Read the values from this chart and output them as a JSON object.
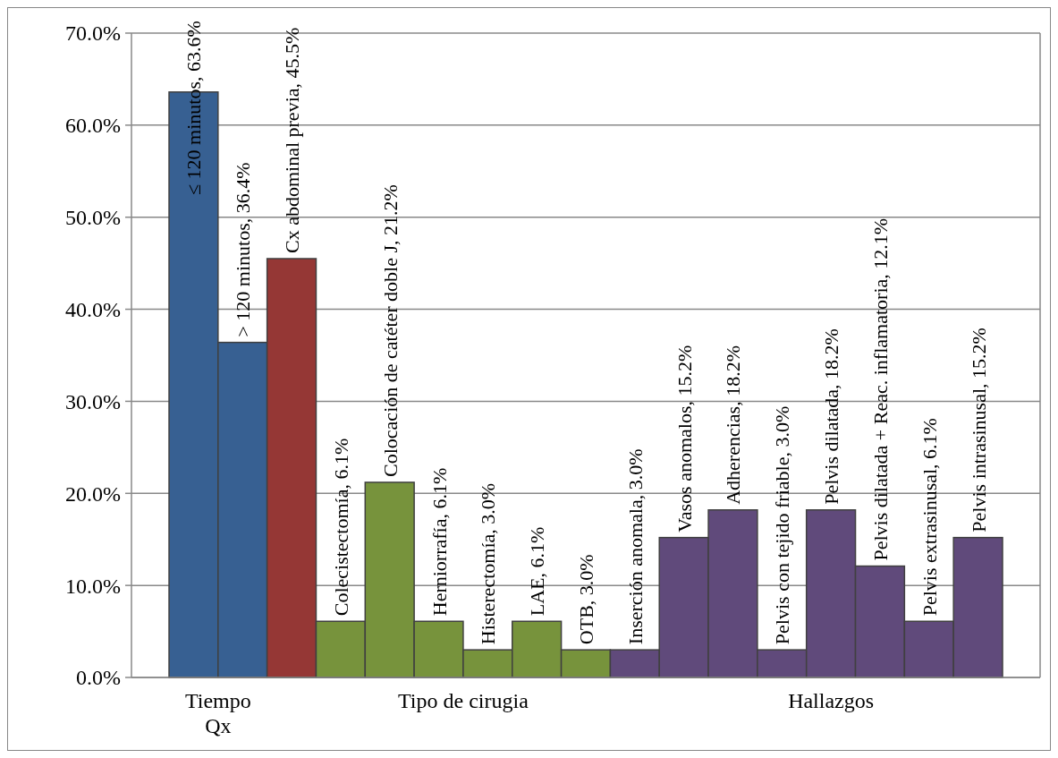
{
  "chart_data": {
    "type": "bar",
    "categories": [
      null,
      null,
      null,
      null,
      null,
      null,
      null,
      null,
      null,
      null,
      null,
      null,
      null,
      null,
      null,
      null,
      null
    ],
    "values": [
      63.6,
      36.4,
      45.5,
      6.1,
      21.2,
      6.1,
      3.0,
      6.1,
      3.0,
      3.0,
      15.2,
      18.2,
      3.0,
      18.2,
      12.1,
      6.1,
      15.2
    ],
    "colors": [
      "#376092",
      "#376092",
      "#953735",
      "#77933c",
      "#77933c",
      "#77933c",
      "#77933c",
      "#77933c",
      "#77933c",
      "#604a7b",
      "#604a7b",
      "#604a7b",
      "#604a7b",
      "#604a7b",
      "#604a7b",
      "#604a7b",
      "#604a7b"
    ],
    "value_labels": [
      "≤ 120 minutos, 63.6%",
      "> 120 minutos, 36.4%",
      "Cx abdominal previa, 45.5%",
      "Colecistectomía, 6.1%",
      "Colocación de catéter doble J, 21.2%",
      "Herniorrafía, 6.1%",
      "Histerectomía, 3.0%",
      "LAE, 6.1%",
      "OTB, 3.0%",
      "Inserción anomala, 3.0%",
      "Vasos anomalos, 15.2%",
      "Adherencias, 18.2%",
      "Pelvis con tejido friable, 3.0%",
      "Pelvis dilatada, 18.2%",
      "Pelvis dilatada + Reac. inflamatoria, 12.1%",
      "Pelvis extrasinusal, 6.1%",
      "Pelvis intrasinusal, 15.2%"
    ],
    "annotations": [
      "Tiempo Qx",
      "Tipo de cirugia",
      "Hallazgos"
    ],
    "ylim": [
      0,
      70
    ],
    "yticks": [
      {
        "value": 0,
        "label": "0.0%"
      },
      {
        "value": 10,
        "label": "10.0%"
      },
      {
        "value": 20,
        "label": "20.0%"
      },
      {
        "value": 30,
        "label": "30.0%"
      },
      {
        "value": 40,
        "label": "40.0%"
      },
      {
        "value": 50,
        "label": "50.0%"
      },
      {
        "value": 60,
        "label": "60.0%"
      },
      {
        "value": 70,
        "label": "70.0%"
      }
    ],
    "grid": "y"
  }
}
